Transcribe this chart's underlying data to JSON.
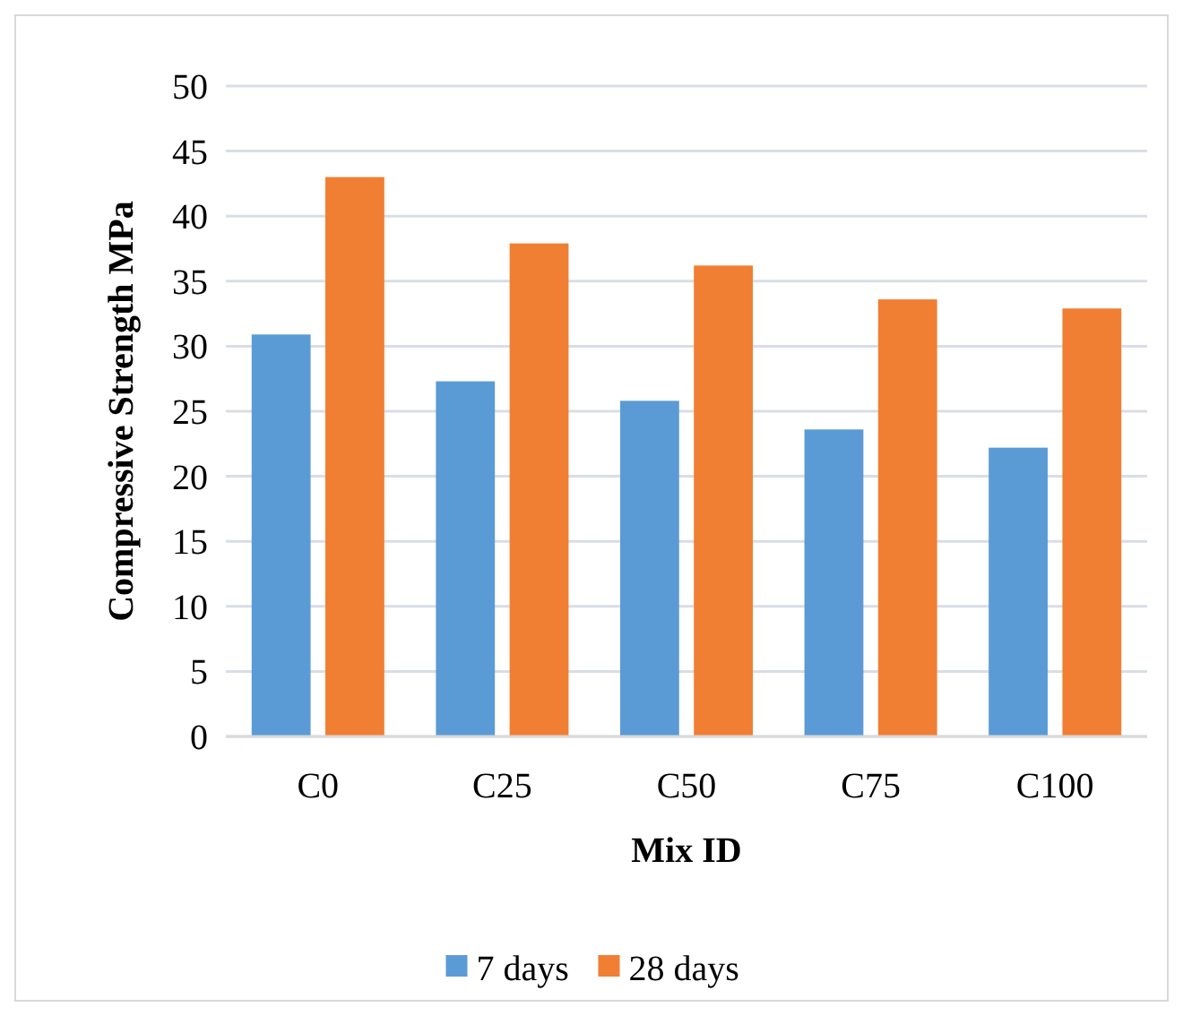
{
  "chart_data": {
    "type": "bar",
    "xlabel": "Mix ID",
    "ylabel": "Compressive Strength MPa",
    "categories": [
      "C0",
      "C25",
      "C50",
      "C75",
      "C100"
    ],
    "series": [
      {
        "name": "7 days",
        "color": "#5b9bd5",
        "values": [
          30.9,
          27.3,
          25.8,
          23.6,
          22.2
        ]
      },
      {
        "name": "28 days",
        "color": "#f07f33",
        "values": [
          43.0,
          37.9,
          36.2,
          33.6,
          32.9
        ]
      }
    ],
    "ylim": [
      0,
      50
    ],
    "yticks": [
      0,
      5,
      10,
      15,
      20,
      25,
      30,
      35,
      40,
      45,
      50
    ],
    "grid": "y",
    "legend": "bottom"
  }
}
